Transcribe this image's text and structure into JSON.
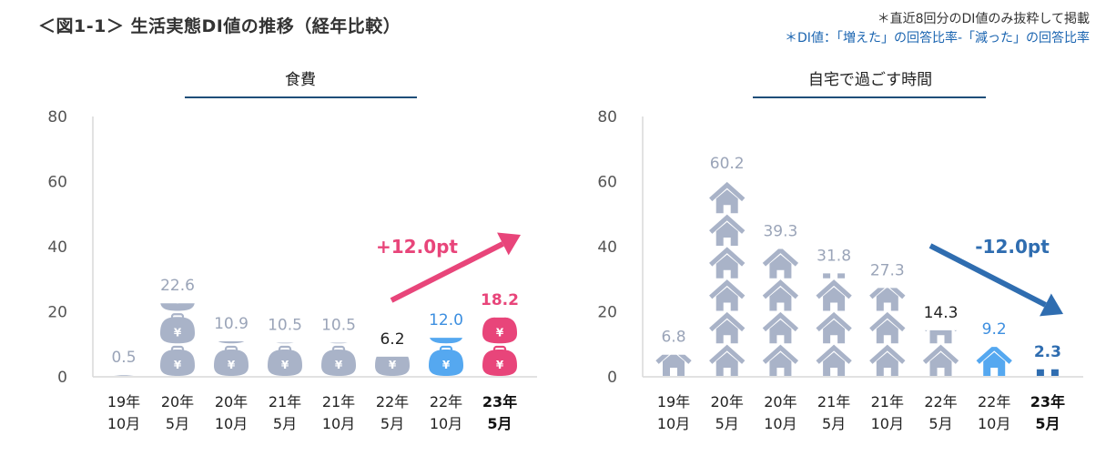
{
  "header": {
    "title": "＜図1-1＞ 生活実態DI値の推移（経年比較）",
    "note1": "＊直近8回分のDI値のみ抜粋して掲載",
    "note2": "＊DI値：「増えた」の回答比率-「減った」の回答比率"
  },
  "colors": {
    "gray": "#a9b3c8",
    "blue": "#55a8f0",
    "pink": "#e8457a",
    "dark_blue": "#2f6db0",
    "axis": "#d9d9d9",
    "underline": "#1f4e79"
  },
  "chart_data": [
    {
      "type": "bar",
      "title": "食費",
      "icon": "wallet-icon",
      "categories": [
        [
          "19年",
          "10月"
        ],
        [
          "20年",
          "5月"
        ],
        [
          "20年",
          "10月"
        ],
        [
          "21年",
          "5月"
        ],
        [
          "21年",
          "10月"
        ],
        [
          "22年",
          "5月"
        ],
        [
          "22年",
          "10月"
        ],
        [
          "23年",
          "5月"
        ]
      ],
      "values": [
        0.5,
        22.6,
        10.9,
        10.5,
        10.5,
        6.2,
        12.0,
        18.2
      ],
      "value_labels": [
        "0.5",
        "22.6",
        "10.9",
        "10.5",
        "10.5",
        "6.2",
        "12.0",
        "18.2"
      ],
      "ylim": [
        0,
        80
      ],
      "yticks": [
        0,
        20,
        40,
        60,
        80
      ],
      "highlight": {
        "previous_index": 6,
        "latest_index": 7
      },
      "annotation": {
        "text": "+12.0pt",
        "direction": "up"
      }
    },
    {
      "type": "bar",
      "title": "自宅で過ごす時間",
      "icon": "house-icon",
      "categories": [
        [
          "19年",
          "10月"
        ],
        [
          "20年",
          "5月"
        ],
        [
          "20年",
          "10月"
        ],
        [
          "21年",
          "5月"
        ],
        [
          "21年",
          "10月"
        ],
        [
          "22年",
          "5月"
        ],
        [
          "22年",
          "10月"
        ],
        [
          "23年",
          "5月"
        ]
      ],
      "values": [
        6.8,
        60.2,
        39.3,
        31.8,
        27.3,
        14.3,
        9.2,
        2.3
      ],
      "value_labels": [
        "6.8",
        "60.2",
        "39.3",
        "31.8",
        "27.3",
        "14.3",
        "9.2",
        "2.3"
      ],
      "ylim": [
        0,
        80
      ],
      "yticks": [
        0,
        20,
        40,
        60,
        80
      ],
      "highlight": {
        "previous_index": 6,
        "latest_index": 7
      },
      "annotation": {
        "text": "-12.0pt",
        "direction": "down"
      }
    }
  ]
}
